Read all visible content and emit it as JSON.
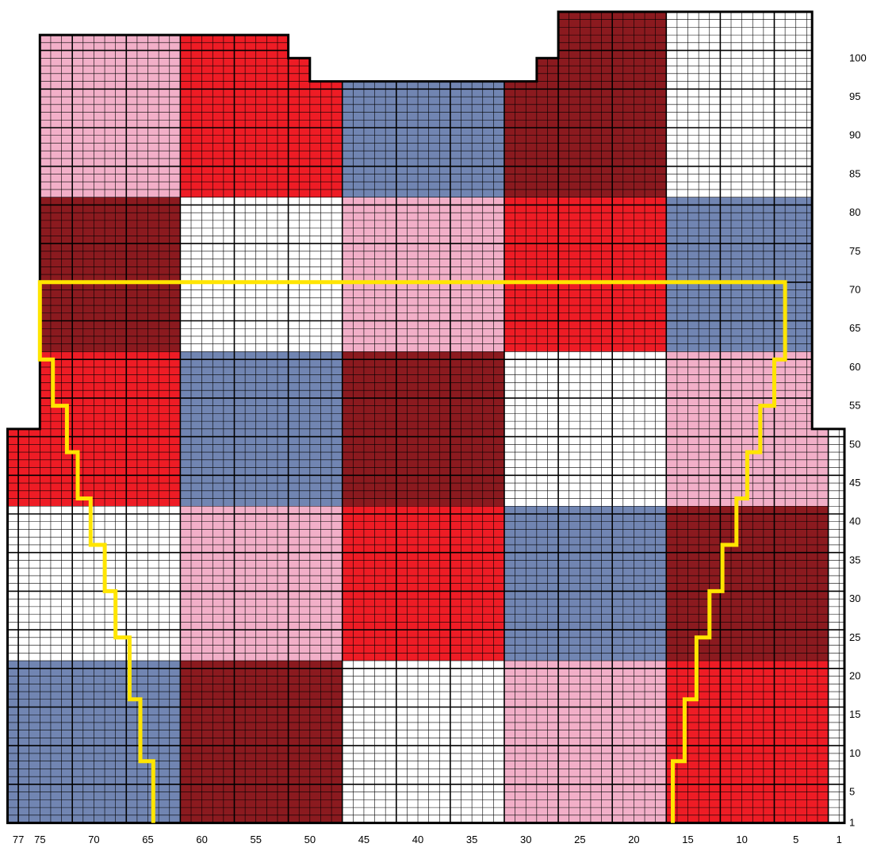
{
  "chart_data": {
    "type": "heatmap",
    "columns_total": 77,
    "rows_total": 101,
    "x_tick_labels": [
      "77",
      "75",
      "70",
      "65",
      "60",
      "55",
      "50",
      "45",
      "40",
      "35",
      "30",
      "25",
      "20",
      "15",
      "10",
      "5",
      "1"
    ],
    "y_tick_labels": [
      "100",
      "95",
      "90",
      "85",
      "80",
      "75",
      "70",
      "65",
      "60",
      "55",
      "50",
      "45",
      "40",
      "35",
      "30",
      "25",
      "20",
      "15",
      "10",
      "5",
      "1"
    ],
    "colors": {
      "pink": "#F2AFC8",
      "red": "#EE1C25",
      "darkred": "#8B1A1F",
      "blue": "#7185B2",
      "white": "#FFFFFF",
      "outline": "#000000",
      "guide": "#FFE500"
    },
    "outline_cells": [
      [
        -0.5,
        1
      ],
      [
        -0.5,
        52
      ],
      [
        2.5,
        52
      ],
      [
        2.5,
        106
      ],
      [
        26,
        106
      ],
      [
        26,
        100
      ],
      [
        28,
        100
      ],
      [
        28,
        97
      ],
      [
        49,
        97
      ],
      [
        49,
        100
      ],
      [
        51,
        100
      ],
      [
        51,
        103
      ],
      [
        74,
        103
      ],
      [
        74,
        52
      ],
      [
        77,
        52
      ],
      [
        77,
        1
      ]
    ],
    "color_blocks": [
      {
        "cols": [
          61,
          77
        ],
        "rows": [
          82,
          106
        ],
        "color": "pink"
      },
      {
        "cols": [
          46,
          61
        ],
        "rows": [
          82,
          106
        ],
        "color": "red"
      },
      {
        "cols": [
          31,
          46
        ],
        "rows": [
          82,
          106
        ],
        "color": "blue"
      },
      {
        "cols": [
          16,
          31
        ],
        "rows": [
          82,
          106
        ],
        "color": "darkred"
      },
      {
        "cols": [
          1,
          16
        ],
        "rows": [
          82,
          106
        ],
        "color": "white"
      },
      {
        "cols": [
          61,
          77
        ],
        "rows": [
          62,
          82
        ],
        "color": "darkred"
      },
      {
        "cols": [
          46,
          61
        ],
        "rows": [
          62,
          82
        ],
        "color": "white"
      },
      {
        "cols": [
          31,
          46
        ],
        "rows": [
          62,
          82
        ],
        "color": "pink"
      },
      {
        "cols": [
          16,
          31
        ],
        "rows": [
          62,
          82
        ],
        "color": "red"
      },
      {
        "cols": [
          1,
          16
        ],
        "rows": [
          62,
          82
        ],
        "color": "blue"
      },
      {
        "cols": [
          61,
          77
        ],
        "rows": [
          42,
          62
        ],
        "color": "red"
      },
      {
        "cols": [
          46,
          61
        ],
        "rows": [
          42,
          62
        ],
        "color": "blue"
      },
      {
        "cols": [
          31,
          46
        ],
        "rows": [
          42,
          62
        ],
        "color": "darkred"
      },
      {
        "cols": [
          16,
          31
        ],
        "rows": [
          42,
          62
        ],
        "color": "white"
      },
      {
        "cols": [
          1,
          16
        ],
        "rows": [
          42,
          62
        ],
        "color": "pink"
      },
      {
        "cols": [
          61,
          77
        ],
        "rows": [
          22,
          42
        ],
        "color": "white"
      },
      {
        "cols": [
          46,
          61
        ],
        "rows": [
          22,
          42
        ],
        "color": "pink"
      },
      {
        "cols": [
          31,
          46
        ],
        "rows": [
          22,
          42
        ],
        "color": "red"
      },
      {
        "cols": [
          16,
          31
        ],
        "rows": [
          22,
          42
        ],
        "color": "blue"
      },
      {
        "cols": [
          1,
          16
        ],
        "rows": [
          22,
          42
        ],
        "color": "darkred"
      },
      {
        "cols": [
          61,
          77
        ],
        "rows": [
          1,
          22
        ],
        "color": "blue"
      },
      {
        "cols": [
          46,
          61
        ],
        "rows": [
          1,
          22
        ],
        "color": "darkred"
      },
      {
        "cols": [
          31,
          46
        ],
        "rows": [
          1,
          22
        ],
        "color": "white"
      },
      {
        "cols": [
          16,
          31
        ],
        "rows": [
          1,
          22
        ],
        "color": "pink"
      },
      {
        "cols": [
          1,
          16
        ],
        "rows": [
          1,
          22
        ],
        "color": "red"
      }
    ],
    "guide_line": [
      [
        63.5,
        1
      ],
      [
        63.5,
        9
      ],
      [
        64.7,
        9
      ],
      [
        64.7,
        17
      ],
      [
        65.7,
        17
      ],
      [
        65.7,
        25
      ],
      [
        67,
        25
      ],
      [
        67,
        31
      ],
      [
        68,
        31
      ],
      [
        68,
        37
      ],
      [
        69.3,
        37
      ],
      [
        69.3,
        43
      ],
      [
        70.5,
        43
      ],
      [
        70.5,
        49
      ],
      [
        71.5,
        49
      ],
      [
        71.5,
        55
      ],
      [
        72.8,
        55
      ],
      [
        72.8,
        61
      ],
      [
        74,
        61
      ],
      [
        74,
        71
      ],
      [
        5,
        71
      ],
      [
        5,
        61
      ],
      [
        6,
        61
      ],
      [
        6,
        55
      ],
      [
        7.3,
        55
      ],
      [
        7.3,
        49
      ],
      [
        8.5,
        49
      ],
      [
        8.5,
        43
      ],
      [
        9.5,
        43
      ],
      [
        9.5,
        37
      ],
      [
        10.8,
        37
      ],
      [
        10.8,
        31
      ],
      [
        12,
        31
      ],
      [
        12,
        25
      ],
      [
        13.2,
        25
      ],
      [
        13.2,
        17
      ],
      [
        14.3,
        17
      ],
      [
        14.3,
        9
      ],
      [
        15.4,
        9
      ],
      [
        15.4,
        1
      ]
    ]
  }
}
